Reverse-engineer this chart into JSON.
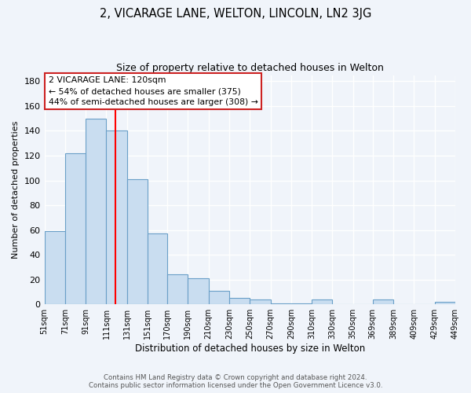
{
  "title": "2, VICARAGE LANE, WELTON, LINCOLN, LN2 3JG",
  "subtitle": "Size of property relative to detached houses in Welton",
  "xlabel": "Distribution of detached houses by size in Welton",
  "ylabel": "Number of detached properties",
  "bin_edges": [
    51,
    71,
    91,
    111,
    131,
    151,
    170,
    190,
    210,
    230,
    250,
    270,
    290,
    310,
    330,
    350,
    369,
    389,
    409,
    429,
    449
  ],
  "bar_heights": [
    59,
    122,
    150,
    140,
    101,
    57,
    24,
    21,
    11,
    5,
    4,
    1,
    1,
    4,
    0,
    0,
    4,
    0,
    0,
    2
  ],
  "bar_color": "#c9ddf0",
  "bar_edge_color": "#6a9fc8",
  "red_line_x": 120,
  "annotation_lines": [
    "2 VICARAGE LANE: 120sqm",
    "← 54% of detached houses are smaller (375)",
    "44% of semi-detached houses are larger (308) →"
  ],
  "ylim": [
    0,
    185
  ],
  "yticks": [
    0,
    20,
    40,
    60,
    80,
    100,
    120,
    140,
    160,
    180
  ],
  "background_color": "#f0f4fa",
  "grid_color": "#ffffff",
  "footer_line1": "Contains HM Land Registry data © Crown copyright and database right 2024.",
  "footer_line2": "Contains public sector information licensed under the Open Government Licence v3.0."
}
